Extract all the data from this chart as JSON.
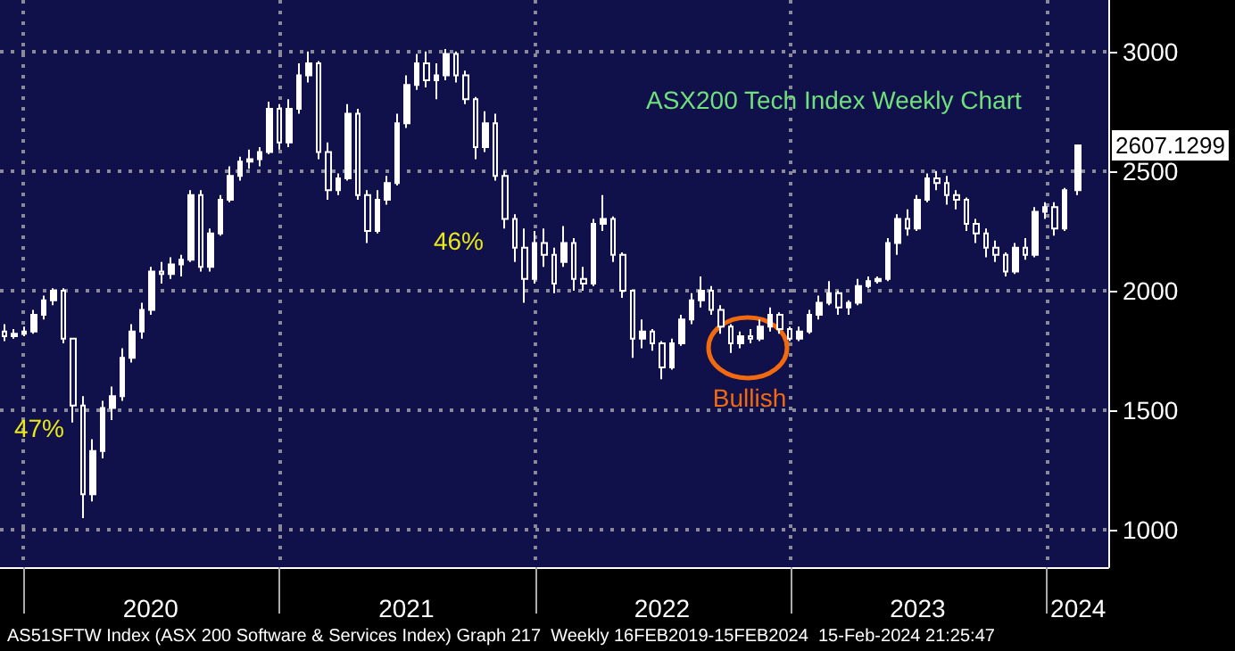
{
  "chart_data": {
    "type": "candlestick",
    "title": "ASX200 Tech Index Weekly Chart",
    "x": [
      "2019-12-06",
      "2019-12-20",
      "2020-01-03",
      "2020-01-17",
      "2020-01-31",
      "2020-02-14",
      "2020-02-28",
      "2020-03-13",
      "2020-03-27",
      "2020-04-10",
      "2020-04-24",
      "2020-05-08",
      "2020-05-22",
      "2020-06-05",
      "2020-06-19",
      "2020-07-03",
      "2020-07-17",
      "2020-07-31",
      "2020-08-14",
      "2020-08-28",
      "2020-09-11",
      "2020-09-25",
      "2020-10-09",
      "2020-10-23",
      "2020-11-06",
      "2020-11-20",
      "2020-12-04",
      "2020-12-18",
      "2021-01-01",
      "2021-01-15",
      "2021-01-29",
      "2021-02-12",
      "2021-02-26",
      "2021-03-12",
      "2021-03-26",
      "2021-04-09",
      "2021-04-23",
      "2021-05-07",
      "2021-05-21",
      "2021-06-04",
      "2021-06-18",
      "2021-07-02",
      "2021-07-16",
      "2021-07-30",
      "2021-08-13",
      "2021-08-27",
      "2021-09-10",
      "2021-09-24",
      "2021-10-08",
      "2021-10-22",
      "2021-11-05",
      "2021-11-19",
      "2021-12-03",
      "2021-12-17",
      "2021-12-31",
      "2022-01-14",
      "2022-01-28",
      "2022-02-11",
      "2022-02-25",
      "2022-03-11",
      "2022-03-25",
      "2022-04-08",
      "2022-04-22",
      "2022-05-06",
      "2022-05-20",
      "2022-06-03",
      "2022-06-17",
      "2022-07-01",
      "2022-07-15",
      "2022-07-29",
      "2022-08-12",
      "2022-08-26",
      "2022-09-09",
      "2022-09-23",
      "2022-10-07",
      "2022-10-21",
      "2022-11-04",
      "2022-11-18",
      "2022-12-02",
      "2022-12-16",
      "2022-12-30",
      "2023-01-13",
      "2023-01-27",
      "2023-02-10",
      "2023-02-24",
      "2023-03-10",
      "2023-03-24",
      "2023-04-07",
      "2023-04-21",
      "2023-05-05",
      "2023-05-19",
      "2023-06-02",
      "2023-06-16",
      "2023-06-30",
      "2023-07-14",
      "2023-07-28",
      "2023-08-11",
      "2023-08-25",
      "2023-09-08",
      "2023-09-22",
      "2023-10-06",
      "2023-10-20",
      "2023-11-03",
      "2023-11-17",
      "2023-12-01",
      "2023-12-15",
      "2023-12-29",
      "2024-01-12",
      "2024-01-26",
      "2024-02-15"
    ],
    "ohlc": [
      [
        1830,
        1860,
        1790,
        1810
      ],
      [
        1810,
        1840,
        1800,
        1820
      ],
      [
        1820,
        1850,
        1810,
        1830
      ],
      [
        1830,
        1920,
        1820,
        1900
      ],
      [
        1900,
        1980,
        1880,
        1960
      ],
      [
        1960,
        2010,
        1940,
        2000
      ],
      [
        2000,
        2010,
        1780,
        1800
      ],
      [
        1800,
        1800,
        1450,
        1520
      ],
      [
        1520,
        1560,
        1050,
        1150
      ],
      [
        1150,
        1380,
        1120,
        1330
      ],
      [
        1330,
        1540,
        1300,
        1510
      ],
      [
        1510,
        1600,
        1460,
        1560
      ],
      [
        1560,
        1760,
        1540,
        1720
      ],
      [
        1720,
        1860,
        1700,
        1830
      ],
      [
        1830,
        1950,
        1800,
        1920
      ],
      [
        1920,
        2100,
        1900,
        2080
      ],
      [
        2080,
        2120,
        2030,
        2070
      ],
      [
        2070,
        2140,
        2050,
        2110
      ],
      [
        2110,
        2150,
        2060,
        2130
      ],
      [
        2130,
        2420,
        2120,
        2400
      ],
      [
        2400,
        2420,
        2080,
        2100
      ],
      [
        2100,
        2260,
        2080,
        2240
      ],
      [
        2240,
        2400,
        2230,
        2380
      ],
      [
        2380,
        2520,
        2370,
        2480
      ],
      [
        2480,
        2560,
        2460,
        2540
      ],
      [
        2540,
        2590,
        2510,
        2550
      ],
      [
        2550,
        2600,
        2520,
        2580
      ],
      [
        2580,
        2790,
        2570,
        2760
      ],
      [
        2760,
        2780,
        2590,
        2620
      ],
      [
        2620,
        2800,
        2600,
        2760
      ],
      [
        2760,
        2950,
        2740,
        2900
      ],
      [
        2900,
        3000,
        2870,
        2950
      ],
      [
        2950,
        2960,
        2550,
        2580
      ],
      [
        2580,
        2620,
        2380,
        2420
      ],
      [
        2420,
        2490,
        2400,
        2470
      ],
      [
        2470,
        2780,
        2460,
        2740
      ],
      [
        2740,
        2760,
        2380,
        2400
      ],
      [
        2400,
        2420,
        2200,
        2250
      ],
      [
        2250,
        2420,
        2240,
        2380
      ],
      [
        2380,
        2480,
        2360,
        2450
      ],
      [
        2450,
        2740,
        2440,
        2700
      ],
      [
        2700,
        2900,
        2680,
        2860
      ],
      [
        2860,
        2990,
        2840,
        2950
      ],
      [
        2950,
        3000,
        2850,
        2880
      ],
      [
        2880,
        2950,
        2800,
        2900
      ],
      [
        2900,
        3010,
        2880,
        2990
      ],
      [
        2990,
        3000,
        2870,
        2900
      ],
      [
        2900,
        2920,
        2780,
        2800
      ],
      [
        2800,
        2810,
        2550,
        2600
      ],
      [
        2600,
        2750,
        2580,
        2700
      ],
      [
        2700,
        2740,
        2460,
        2480
      ],
      [
        2480,
        2500,
        2260,
        2300
      ],
      [
        2300,
        2320,
        2120,
        2180
      ],
      [
        2180,
        2260,
        1950,
        2050
      ],
      [
        2050,
        2250,
        2030,
        2200
      ],
      [
        2200,
        2260,
        2100,
        2150
      ],
      [
        2150,
        2180,
        1990,
        2030
      ],
      [
        2120,
        2270,
        2100,
        2200
      ],
      [
        2200,
        2220,
        2000,
        2050
      ],
      [
        2050,
        2100,
        2000,
        2030
      ],
      [
        2030,
        2300,
        2020,
        2280
      ],
      [
        2280,
        2400,
        2250,
        2300
      ],
      [
        2300,
        2310,
        2120,
        2150
      ],
      [
        2150,
        2160,
        1970,
        2000
      ],
      [
        2000,
        2000,
        1720,
        1800
      ],
      [
        1800,
        1880,
        1760,
        1830
      ],
      [
        1830,
        1840,
        1750,
        1780
      ],
      [
        1780,
        1790,
        1630,
        1680
      ],
      [
        1680,
        1800,
        1670,
        1780
      ],
      [
        1780,
        1900,
        1770,
        1880
      ],
      [
        1880,
        1990,
        1860,
        1960
      ],
      [
        1960,
        2060,
        1930,
        2000
      ],
      [
        2000,
        2020,
        1900,
        1920
      ],
      [
        1920,
        1940,
        1820,
        1850
      ],
      [
        1850,
        1860,
        1740,
        1780
      ],
      [
        1780,
        1830,
        1760,
        1810
      ],
      [
        1810,
        1840,
        1780,
        1800
      ],
      [
        1800,
        1880,
        1790,
        1850
      ],
      [
        1850,
        1930,
        1830,
        1900
      ],
      [
        1900,
        1910,
        1820,
        1840
      ],
      [
        1840,
        1850,
        1790,
        1800
      ],
      [
        1800,
        1850,
        1790,
        1830
      ],
      [
        1830,
        1920,
        1820,
        1900
      ],
      [
        1900,
        1980,
        1880,
        1950
      ],
      [
        1950,
        2040,
        1940,
        1990
      ],
      [
        1990,
        2000,
        1900,
        1930
      ],
      [
        1930,
        1960,
        1900,
        1950
      ],
      [
        1950,
        2050,
        1940,
        2020
      ],
      [
        2020,
        2060,
        2010,
        2040
      ],
      [
        2040,
        2060,
        2030,
        2050
      ],
      [
        2050,
        2220,
        2040,
        2200
      ],
      [
        2200,
        2320,
        2150,
        2300
      ],
      [
        2300,
        2340,
        2230,
        2260
      ],
      [
        2260,
        2400,
        2250,
        2380
      ],
      [
        2380,
        2490,
        2370,
        2470
      ],
      [
        2470,
        2500,
        2420,
        2450
      ],
      [
        2450,
        2480,
        2360,
        2400
      ],
      [
        2400,
        2420,
        2340,
        2380
      ],
      [
        2380,
        2390,
        2250,
        2280
      ],
      [
        2280,
        2300,
        2200,
        2240
      ],
      [
        2240,
        2260,
        2140,
        2180
      ],
      [
        2180,
        2210,
        2120,
        2150
      ],
      [
        2150,
        2160,
        2060,
        2080
      ],
      [
        2080,
        2200,
        2070,
        2180
      ],
      [
        2180,
        2220,
        2130,
        2150
      ],
      [
        2150,
        2350,
        2140,
        2330
      ],
      [
        2330,
        2370,
        2300,
        2350
      ],
      [
        2350,
        2370,
        2230,
        2260
      ],
      [
        2260,
        2430,
        2250,
        2420
      ],
      [
        2420,
        2607.1299,
        2400,
        2607.1299
      ]
    ],
    "color": "#ffffff",
    "xlim": [
      "2019-11-29",
      "2024-03-29"
    ],
    "xticks": [
      {
        "value": "2020-01-01",
        "label": null
      },
      {
        "value": "2020-07-01",
        "label": "2020"
      },
      {
        "value": "2021-01-01",
        "label": null
      },
      {
        "value": "2021-07-01",
        "label": "2021"
      },
      {
        "value": "2022-01-01",
        "label": null
      },
      {
        "value": "2022-07-01",
        "label": "2022"
      },
      {
        "value": "2023-01-01",
        "label": null
      },
      {
        "value": "2023-07-01",
        "label": "2023"
      },
      {
        "value": "2024-01-01",
        "label": null
      },
      {
        "value": "2024-02-15",
        "label": "2024"
      }
    ],
    "ylim": [
      845,
      3215
    ],
    "yticks": [
      1000,
      1500,
      2000,
      2500,
      3000
    ],
    "grid": true,
    "annotations": [
      "47%",
      "46%",
      "Bullish",
      {
        "text": "2607.1299",
        "x": "2024-02-15",
        "y": 2607.1299
      },
      "AS51SFTW Index (ASX 200 Software & Services Index) Graph 217  Weekly 16FEB2019-15FEB2024  15-Feb-2024 21:25:47"
    ]
  }
}
